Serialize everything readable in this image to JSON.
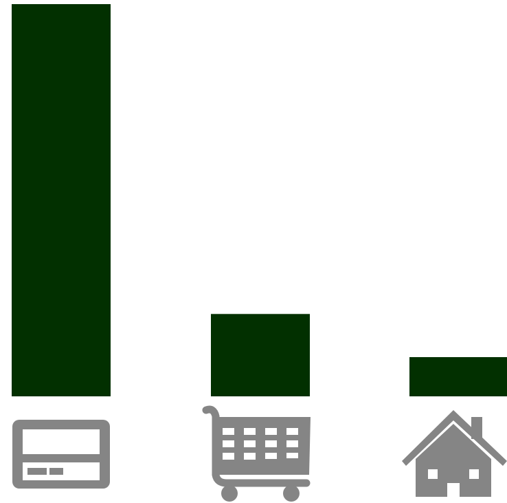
{
  "chart_data": {
    "type": "bar",
    "categories": [
      "credit-card-icon",
      "shopping-cart-icon",
      "house-icon"
    ],
    "values": [
      100,
      21,
      10
    ],
    "ylim": [
      0,
      100
    ],
    "grid": false,
    "bar_color": "#023000",
    "icon_color": "#858585"
  }
}
